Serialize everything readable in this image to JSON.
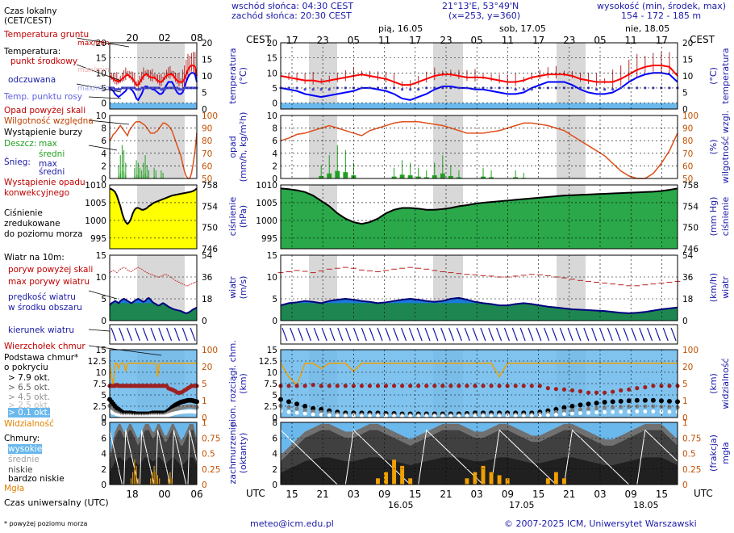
{
  "header": {
    "sunrise": "wschód słońca: 04:30 CEST",
    "sunset": "zachód słońca: 20:30 CEST",
    "coords": "21°13'E, 53°49'N",
    "grid": "(x=253,  y=360)",
    "altitude_title": "wysokość (min, środek, max)",
    "altitude_values": "154 - 172 - 185 m",
    "day1": "pią, 16.05",
    "day2": "sob, 17.05",
    "day3": "nie, 18.05",
    "cest": "CEST",
    "utc": "UTC",
    "local_ticks": [
      "17",
      "23",
      "05",
      "11",
      "17",
      "23",
      "05",
      "11",
      "17",
      "23",
      "05",
      "11",
      "17"
    ],
    "utc_ticks": [
      "15",
      "21",
      "03",
      "09",
      "15",
      "21",
      "03",
      "09",
      "15",
      "21",
      "03",
      "09",
      "15"
    ],
    "utc_dates": [
      "16.05",
      "17.05",
      "18.05"
    ]
  },
  "legend": {
    "local_time": "Czas lokalny",
    "local_time2": "(CET/CEST)",
    "legend_ticks_top": [
      "20",
      "02",
      "08"
    ],
    "legend_ticks_bottom": [
      "18",
      "00",
      "06"
    ],
    "soil_temp": "Temperatura gruntu",
    "soil_temp_sub": "max/min",
    "temperature": "Temperatura:",
    "midpoint": "punkt środkowy",
    "midpoint_sub": "max/min",
    "felt": "odczuwana",
    "felt_sub": "max/min",
    "dewpoint": "Temp. punktu rosy",
    "precip_over": "Opad powyżej skali",
    "humidity": "Wilgotność względna",
    "storm": "Wystąpienie burzy",
    "rain": "Deszcz:",
    "rain_max": "max",
    "rain_mean": "średni",
    "snow": "Śnieg:",
    "snow_max": "max",
    "snow_mean": "średni",
    "conv": "Wystąpienie opadu",
    "conv2": "konwekcyjnego",
    "pressure": "Ciśnienie",
    "pressure2": "zredukowane",
    "pressure3": "do poziomu morza",
    "wind": "Wiatr na 10m:",
    "gust_over": "poryw powyżej skali",
    "gust_max": "max porywy wiatru",
    "wind_speed": "prędkość wiatru",
    "wind_speed2": "w środku obszaru",
    "wind_dir": "kierunek wiatru",
    "cloud_top": "Wierzchołek chmur",
    "cloud_base": "Podstawa chmur*",
    "cloud_base2": "o pokryciu",
    "okt79": "> 7.9 okt.",
    "okt65": "> 6.5 okt.",
    "okt45": "> 4.5 okt.",
    "okt25": "> 2.5 okt.",
    "okt01": "> 0.1 okt.",
    "visibility": "Widzialność",
    "clouds": "Chmury:",
    "high": "wysokie",
    "mid": "średnie",
    "low": "niskie",
    "vlow": "bardzo niskie",
    "fog": "Mgła",
    "utc_time": "Czas uniwersalny (UTC)",
    "footnote": "* powyżej poziomu morza"
  },
  "axis_titles": {
    "temp_left": "temperatura",
    "temp_left_unit": "(°C)",
    "temp_right": "temperatura",
    "temp_right_unit": "(°C)",
    "precip_left": "opad",
    "precip_left_unit": "(mm/h, kg/m²h)",
    "precip_right": "wilgotność wzgl.",
    "precip_right_unit": "(%)",
    "press_left": "ciśnienie",
    "press_left_unit": "(hPa)",
    "press_right": "ciśnienie",
    "press_right_unit": "(mm Hg)",
    "wind_left": "wiatr",
    "wind_left_unit": "(m/s)",
    "wind_right": "wiatr",
    "wind_right_unit": "(km/h)",
    "cloud_left": "pion. rozciągł. chm.",
    "cloud_left_unit": "(km)",
    "cloud_right": "widzialność",
    "cloud_right_unit": "(km)",
    "cov_left": "zachmurzenie",
    "cov_left_unit": "(oktanty)",
    "cov_right": "mgła",
    "cov_right_unit": "(frakcja)"
  },
  "footer": {
    "email": "meteo@icm.edu.pl",
    "copyright": "© 2007-2025 ICM, Uniwersytet Warszawski"
  },
  "colors": {
    "background": "#6ab8ec",
    "night": "#d8d8d8",
    "temp": "#ff0000",
    "felt": "#0000ff",
    "humidity": "#e0501a",
    "pressure": "#ffff00",
    "wind": "#1a7a1a",
    "fog": "#f0a000"
  },
  "chart_data": [
    {
      "type": "line",
      "title": "temperatura",
      "ylabel": "(°C)",
      "ylim": [
        -2,
        20
      ],
      "yticks": [
        0,
        5,
        10,
        15,
        20
      ],
      "series": [
        {
          "name": "punkt środkowy",
          "values": [
            9,
            8.5,
            8,
            7.5,
            7.5,
            7,
            7.5,
            8,
            8.5,
            9,
            9.5,
            9,
            8.5,
            8,
            7,
            6,
            6,
            7,
            8,
            9,
            9.5,
            9.5,
            9,
            8.5,
            8.5,
            8.5,
            8,
            7.5,
            7,
            7,
            7.5,
            8.5,
            9,
            9.5,
            9.5,
            9.5,
            9,
            8,
            7.5,
            7,
            7,
            7,
            8,
            9.5,
            11,
            12,
            12.5,
            12.5,
            12,
            9
          ]
        },
        {
          "name": "odczuwana",
          "values": [
            5,
            4.5,
            4,
            3,
            2.5,
            2,
            2.5,
            3,
            3.5,
            4,
            5,
            5,
            4.5,
            4,
            3,
            1.5,
            1,
            2,
            3,
            4.5,
            5.5,
            5.5,
            5,
            5,
            4.5,
            4.5,
            4,
            3.5,
            3,
            3,
            3.5,
            5,
            6,
            7,
            7,
            7,
            6,
            4.5,
            3.5,
            3,
            3,
            3.5,
            5,
            7,
            8.5,
            9.5,
            10,
            10,
            9.5,
            7
          ]
        },
        {
          "name": "Temp. punktu rosy",
          "values": [
            5,
            5,
            5,
            4.5,
            4.5,
            4.5,
            4.5,
            5,
            5,
            5,
            5,
            5,
            5,
            5,
            5,
            4.5,
            4.5,
            4.5,
            5,
            5,
            5,
            5,
            5,
            5,
            5,
            5,
            5,
            5,
            5,
            4.5,
            4.5,
            4.5,
            5,
            5,
            5,
            5,
            5,
            5,
            5,
            4.5,
            4.5,
            4.5,
            5,
            5,
            5,
            5,
            5,
            5,
            5,
            5
          ]
        }
      ]
    },
    {
      "type": "line",
      "title": "opad",
      "ylabel": "(mm/h, kg/m²h)",
      "ylim": [
        0,
        10
      ],
      "yticks": [
        0,
        2,
        4,
        6,
        8,
        10
      ],
      "series": [
        {
          "name": "Wilgotność względna",
          "values": [
            80,
            82,
            85,
            86,
            88,
            90,
            92,
            90,
            88,
            86,
            84,
            88,
            90,
            92,
            94,
            95,
            95,
            95,
            94,
            93,
            92,
            90,
            88,
            86,
            86,
            86,
            87,
            88,
            90,
            92,
            94,
            94,
            93,
            92,
            90,
            88,
            84,
            80,
            76,
            72,
            68,
            62,
            56,
            52,
            50,
            50,
            54,
            62,
            72,
            86
          ]
        },
        {
          "name": "Deszcz średni",
          "values": [
            0,
            0,
            0,
            0,
            0,
            0.4,
            0.8,
            1.2,
            1.0,
            0.5,
            0,
            0,
            0,
            0,
            0.3,
            0.6,
            0.5,
            0.3,
            0.2,
            0.5,
            0.8,
            0.4,
            0.2,
            0,
            0,
            0.3,
            0.2,
            0,
            0,
            0.2,
            0.1,
            0,
            0,
            0,
            0,
            0,
            0,
            0,
            0,
            0,
            0,
            0,
            0,
            0,
            0,
            0,
            0,
            0,
            0,
            0
          ]
        }
      ]
    },
    {
      "type": "area",
      "title": "ciśnienie",
      "ylabel": "(hPa)",
      "ylim": [
        992,
        1010
      ],
      "yticks": [
        995,
        1000,
        1005,
        1010
      ],
      "series": [
        {
          "name": "Ciśnienie",
          "values": [
            1009,
            1008.8,
            1008.5,
            1008,
            1007,
            1005.5,
            1004,
            1002,
            1000.5,
            999.5,
            999,
            999.5,
            1000.5,
            1002,
            1003,
            1003.5,
            1003.5,
            1003.3,
            1003,
            1003,
            1003.2,
            1003.5,
            1004,
            1004.3,
            1004.7,
            1005,
            1005.2,
            1005.4,
            1005.6,
            1005.8,
            1006,
            1006.2,
            1006.4,
            1006.6,
            1006.8,
            1007,
            1007.1,
            1007.2,
            1007.3,
            1007.4,
            1007.5,
            1007.6,
            1007.7,
            1007.8,
            1007.9,
            1008,
            1008.1,
            1008.3,
            1008.6,
            1009
          ]
        }
      ]
    },
    {
      "type": "area",
      "title": "wiatr",
      "ylabel": "(m/s)",
      "ylim": [
        0,
        15
      ],
      "yticks": [
        0,
        5,
        10,
        15
      ],
      "series": [
        {
          "name": "prędkość wiatru",
          "values": [
            3.5,
            4,
            4.2,
            4.5,
            4.3,
            4,
            4.5,
            4.8,
            5,
            4.8,
            4.5,
            4.3,
            4,
            4.2,
            4.5,
            4.8,
            5,
            4.8,
            4.5,
            4.3,
            4.5,
            5,
            5.2,
            4.8,
            4.3,
            4,
            3.8,
            3.5,
            3.5,
            3.8,
            4,
            3.8,
            3.5,
            3.2,
            3,
            2.8,
            2.6,
            2.5,
            2.4,
            2.3,
            2.2,
            2,
            1.8,
            1.7,
            1.8,
            2,
            2.3,
            2.6,
            2.8,
            3
          ]
        },
        {
          "name": "max porywy wiatru",
          "values": [
            11,
            11.2,
            11.5,
            11.3,
            11,
            11.4,
            11.8,
            12,
            12.2,
            12,
            11.6,
            11.4,
            11.2,
            11.5,
            11.8,
            12,
            12.2,
            12,
            11.8,
            11.5,
            11.2,
            11,
            10.8,
            10.6,
            10.5,
            10.3,
            10.2,
            10,
            10,
            10.2,
            10.4,
            10.6,
            10.5,
            10.3,
            10,
            9.8,
            9.5,
            9.2,
            9,
            8.8,
            8.6,
            8.4,
            8.2,
            8,
            8,
            8.2,
            8.4,
            8.6,
            8.8,
            9
          ]
        }
      ]
    },
    {
      "type": "scatter",
      "title": "pion. rozciągł. chm.",
      "ylabel": "(km)",
      "ylim": [
        0,
        15
      ],
      "yticks": [
        0,
        2.5,
        5,
        7.5,
        10,
        12.5,
        15
      ],
      "series": [
        {
          "name": "Wierzchołek chmur",
          "values": [
            7,
            7,
            7,
            7,
            7.2,
            7,
            7,
            7,
            7,
            7,
            7,
            7,
            7,
            7,
            7,
            7,
            7,
            7,
            7,
            7,
            7,
            7,
            7,
            7,
            7,
            7,
            7,
            7,
            7,
            7,
            7,
            7,
            7,
            6.5,
            6.3,
            6.2,
            6,
            5.8,
            5.5,
            5.5,
            5.5,
            5.7,
            6,
            6.2,
            6.5,
            6.7,
            7,
            7,
            7,
            7
          ]
        },
        {
          "name": "> 7.9 okt.",
          "values": [
            4,
            3.5,
            3,
            2.5,
            2,
            1.8,
            1.5,
            1.2,
            1,
            1,
            1,
            1,
            1,
            0.9,
            0.9,
            0.8,
            0.8,
            0.8,
            0.8,
            0.8,
            0.8,
            0.8,
            0.8,
            0.9,
            1,
            1,
            1,
            1,
            1,
            1,
            1,
            1,
            1.2,
            1.5,
            1.8,
            2.2,
            2.5,
            2.8,
            3,
            3.2,
            3.4,
            3.5,
            3.6,
            3.7,
            3.8,
            3.8,
            3.8,
            3.7,
            3.6,
            3.5
          ]
        },
        {
          "name": "Widzialność",
          "values": [
            20,
            15,
            12,
            20,
            20,
            18,
            20,
            20,
            20,
            17,
            20,
            20,
            20,
            20,
            20,
            20,
            20,
            20,
            20,
            20,
            20,
            20,
            20,
            20,
            20,
            20,
            20,
            15,
            20,
            20,
            20,
            20,
            20,
            20,
            20,
            20,
            20,
            20,
            20,
            20,
            20,
            20,
            20,
            20,
            20,
            20,
            20,
            20,
            20,
            20
          ]
        }
      ]
    },
    {
      "type": "area",
      "title": "zachmurzenie",
      "ylabel": "(oktanty)",
      "ylim": [
        0,
        8
      ],
      "yticks": [
        0,
        2,
        4,
        6,
        8
      ],
      "series": [
        {
          "name": "niskie",
          "values": [
            3,
            4,
            5,
            6,
            6.5,
            7,
            7,
            6.5,
            6,
            6,
            6.5,
            7,
            7,
            6.5,
            6,
            5.5,
            5,
            5.5,
            6,
            6.5,
            7,
            7,
            7,
            6.5,
            6,
            6,
            6.5,
            7,
            7,
            6.5,
            6,
            5.5,
            5.5,
            6,
            6.5,
            7,
            7,
            6.5,
            6,
            5.5,
            5,
            5,
            5.5,
            6,
            6.5,
            7,
            7,
            7,
            6,
            5
          ]
        },
        {
          "name": "Mgła",
          "values": [
            0,
            0,
            0,
            0,
            0,
            0,
            0,
            0,
            0,
            0,
            0,
            0,
            0.1,
            0.2,
            0.4,
            0.3,
            0.1,
            0,
            0,
            0,
            0,
            0,
            0,
            0.1,
            0.2,
            0.3,
            0.2,
            0.15,
            0.1,
            0,
            0,
            0,
            0,
            0.1,
            0.2,
            0.1,
            0,
            0,
            0,
            0,
            0,
            0,
            0,
            0,
            0,
            0,
            0,
            0,
            0,
            0
          ]
        }
      ]
    }
  ]
}
